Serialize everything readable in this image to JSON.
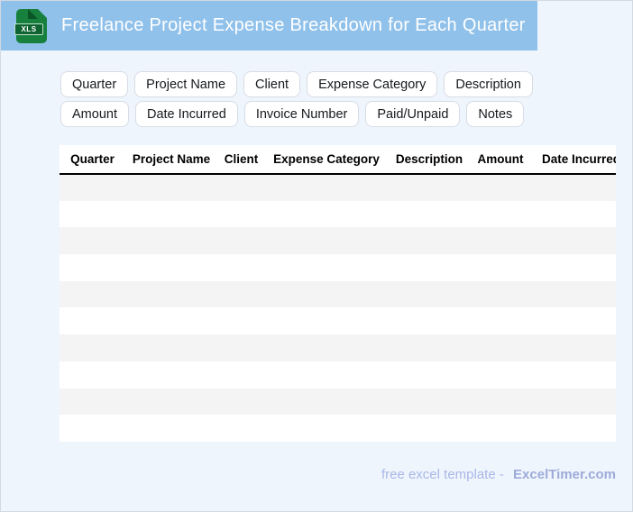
{
  "header": {
    "title": "Freelance Project Expense Breakdown for Each Quarter",
    "file_type_label": "XLS"
  },
  "field_chips": [
    "Quarter",
    "Project Name",
    "Client",
    "Expense Category",
    "Description",
    "Amount",
    "Date Incurred",
    "Invoice Number",
    "Paid/Unpaid",
    "Notes"
  ],
  "table": {
    "columns": [
      "Quarter",
      "Project Name",
      "Client",
      "Expense Category",
      "Description",
      "Amount",
      "Date Incurred"
    ],
    "empty_row_count": 10
  },
  "footer": {
    "text": "free excel template -",
    "brand": "ExcelTimer.com"
  },
  "colors": {
    "bar_blue": "#90c1ea",
    "page_bg": "#eff5fd",
    "page_border": "#d3d9e2",
    "chip_border": "#d7dce5",
    "row_gray": "#f4f4f5",
    "icon_green": "#17803d",
    "icon_fold": "#0c5427",
    "icon_band": "#0e6330",
    "footer_text": "#a9b7e6",
    "footer_brand": "#9dabd9"
  }
}
